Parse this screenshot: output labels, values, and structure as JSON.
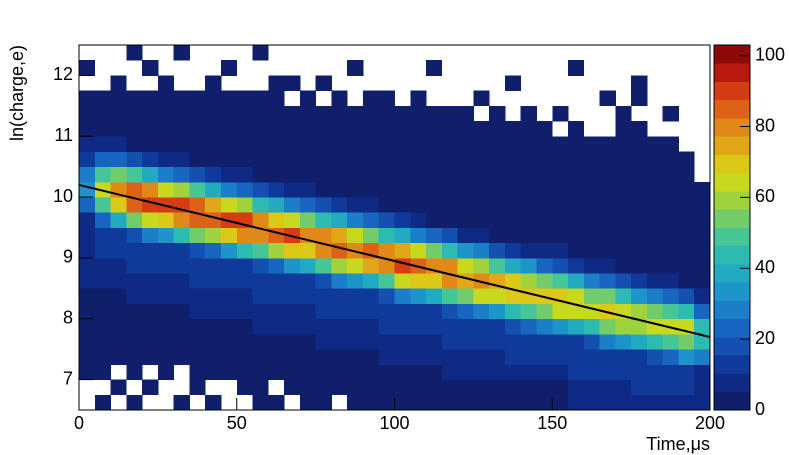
{
  "chart_data": {
    "type": "heatmap",
    "xlabel": "Time,μs",
    "ylabel": "ln(charge,e)",
    "xlim": [
      0,
      200
    ],
    "xticks": [
      0,
      50,
      100,
      150,
      200
    ],
    "ylim": [
      6.5,
      12.5
    ],
    "yticks": [
      7,
      8,
      9,
      10,
      11,
      12
    ],
    "zlim": [
      0,
      103
    ],
    "zticks": [
      0,
      20,
      40,
      60,
      80,
      100
    ],
    "palette": [
      "#101f6b",
      "#0e2a85",
      "#10399c",
      "#1450b0",
      "#1866c0",
      "#1b7ec8",
      "#1d95c9",
      "#22aac0",
      "#2bbbb0",
      "#46c596",
      "#72cc6a",
      "#a0d23e",
      "#c8d81e",
      "#dcc816",
      "#e0a818",
      "#e08818",
      "#dc6218",
      "#d43c14",
      "#b81a10",
      "#8c0a08"
    ],
    "x_bins": [
      0,
      5,
      10,
      15,
      20,
      25,
      30,
      35,
      40,
      45,
      50,
      55,
      60,
      65,
      70,
      75,
      80,
      85,
      90,
      95,
      100,
      105,
      110,
      115,
      120,
      125,
      130,
      135,
      140,
      145,
      150,
      155,
      160,
      165,
      170,
      175,
      180,
      185,
      190,
      195,
      200
    ],
    "y_bins": [
      6.5,
      6.75,
      7,
      7.25,
      7.5,
      7.75,
      8,
      8.25,
      8.5,
      8.75,
      9,
      9.25,
      9.5,
      9.75,
      10,
      10.25,
      10.5,
      10.75,
      11,
      11.25,
      11.5,
      11.75,
      12,
      12.25,
      12.5
    ],
    "values": [
      [
        0,
        0,
        1,
        2,
        3,
        3,
        4,
        4,
        6,
        6,
        8,
        8,
        10,
        24,
        35,
        30,
        15,
        6,
        4,
        1,
        1,
        0,
        1,
        0
      ],
      [
        1,
        0,
        1,
        2,
        3,
        3,
        5,
        5,
        8,
        8,
        12,
        12,
        25,
        51,
        65,
        49,
        22,
        6,
        4,
        2,
        1,
        0,
        0,
        0
      ],
      [
        0,
        1,
        0,
        1,
        3,
        3,
        5,
        5,
        8,
        8,
        12,
        13,
        39,
        72,
        80,
        53,
        21,
        6,
        4,
        2,
        1,
        1,
        0,
        0
      ],
      [
        1,
        0,
        1,
        2,
        3,
        5,
        5,
        8,
        8,
        12,
        12,
        20,
        52,
        86,
        84,
        49,
        17,
        4,
        4,
        1,
        1,
        0,
        0,
        1
      ],
      [
        0,
        1,
        0,
        2,
        3,
        5,
        5,
        8,
        8,
        12,
        12,
        27,
        63,
        91,
        78,
        40,
        12,
        4,
        4,
        2,
        1,
        0,
        1,
        0
      ],
      [
        0,
        0,
        1,
        2,
        3,
        5,
        5,
        8,
        8,
        12,
        12,
        33,
        70,
        88,
        66,
        30,
        8,
        4,
        4,
        2,
        1,
        1,
        0,
        0
      ],
      [
        1,
        0,
        0,
        2,
        3,
        5,
        5,
        8,
        8,
        12,
        14,
        44,
        81,
        90,
        60,
        24,
        6,
        4,
        3,
        2,
        1,
        0,
        0,
        1
      ],
      [
        0,
        1,
        1,
        3,
        5,
        5,
        8,
        8,
        12,
        12,
        20,
        52,
        86,
        84,
        49,
        17,
        4,
        4,
        3,
        1,
        1,
        0,
        0,
        0
      ],
      [
        1,
        0,
        1,
        3,
        5,
        5,
        8,
        8,
        12,
        12,
        25,
        59,
        85,
        73,
        38,
        12,
        4,
        4,
        3,
        2,
        1,
        1,
        0,
        0
      ],
      [
        0,
        0,
        2,
        3,
        5,
        5,
        8,
        8,
        12,
        12,
        33,
        70,
        88,
        66,
        30,
        8,
        4,
        4,
        3,
        1,
        1,
        0,
        1,
        0
      ],
      [
        0,
        1,
        1,
        3,
        5,
        5,
        8,
        8,
        12,
        14,
        44,
        81,
        90,
        60,
        24,
        6,
        4,
        3,
        3,
        2,
        1,
        0,
        0,
        0
      ],
      [
        1,
        1,
        2,
        4,
        5,
        8,
        8,
        12,
        12,
        19,
        49,
        81,
        79,
        46,
        16,
        4,
        4,
        3,
        3,
        1,
        1,
        0,
        0,
        1
      ],
      [
        1,
        0,
        2,
        4,
        5,
        8,
        8,
        12,
        12,
        24,
        58,
        83,
        71,
        37,
        11,
        4,
        4,
        3,
        2,
        1,
        1,
        1,
        0,
        0
      ],
      [
        0,
        1,
        1,
        4,
        5,
        8,
        8,
        12,
        12,
        33,
        70,
        88,
        66,
        30,
        8,
        4,
        4,
        3,
        2,
        2,
        0,
        1,
        0,
        0
      ],
      [
        1,
        1,
        2,
        4,
        5,
        8,
        8,
        12,
        13,
        39,
        72,
        80,
        53,
        21,
        6,
        4,
        4,
        3,
        2,
        1,
        1,
        0,
        0,
        0
      ],
      [
        1,
        1,
        3,
        5,
        8,
        8,
        12,
        12,
        18,
        49,
        80,
        78,
        45,
        16,
        4,
        4,
        3,
        3,
        2,
        1,
        0,
        1,
        0,
        0
      ],
      [
        0,
        1,
        3,
        5,
        8,
        8,
        12,
        12,
        26,
        61,
        87,
        75,
        39,
        12,
        4,
        4,
        3,
        3,
        2,
        1,
        1,
        0,
        0,
        0
      ],
      [
        1,
        2,
        2,
        5,
        8,
        8,
        12,
        12,
        31,
        65,
        82,
        62,
        28,
        7,
        4,
        4,
        3,
        3,
        2,
        1,
        0,
        0,
        1,
        0
      ],
      [
        1,
        1,
        3,
        5,
        8,
        8,
        12,
        13,
        41,
        76,
        84,
        56,
        22,
        6,
        4,
        4,
        3,
        3,
        2,
        1,
        1,
        0,
        0,
        0
      ],
      [
        1,
        2,
        5,
        8,
        8,
        12,
        12,
        18,
        49,
        80,
        78,
        45,
        16,
        4,
        4,
        3,
        3,
        2,
        2,
        1,
        1,
        0,
        0,
        0
      ],
      [
        2,
        2,
        5,
        8,
        8,
        12,
        12,
        26,
        62,
        89,
        77,
        40,
        12,
        4,
        4,
        3,
        3,
        2,
        2,
        1,
        0,
        0,
        0,
        0
      ],
      [
        1,
        3,
        5,
        8,
        8,
        12,
        12,
        33,
        68,
        86,
        65,
        29,
        8,
        4,
        4,
        3,
        3,
        2,
        1,
        1,
        1,
        0,
        0,
        0
      ],
      [
        2,
        3,
        5,
        8,
        8,
        12,
        13,
        39,
        72,
        80,
        53,
        21,
        5,
        4,
        4,
        3,
        3,
        2,
        1,
        1,
        0,
        0,
        1,
        0
      ],
      [
        3,
        4,
        6,
        8,
        12,
        12,
        18,
        49,
        80,
        78,
        45,
        16,
        4,
        4,
        3,
        3,
        2,
        2,
        1,
        1,
        0,
        0,
        0,
        0
      ],
      [
        3,
        4,
        6,
        8,
        12,
        12,
        22,
        52,
        75,
        65,
        33,
        10,
        4,
        4,
        3,
        3,
        2,
        2,
        1,
        1,
        0,
        0,
        0,
        0
      ],
      [
        3,
        4,
        6,
        8,
        12,
        12,
        30,
        62,
        78,
        59,
        27,
        7,
        4,
        4,
        3,
        3,
        2,
        1,
        1,
        0,
        1,
        0,
        0,
        0
      ],
      [
        3,
        4,
        6,
        8,
        12,
        12,
        36,
        65,
        73,
        48,
        19,
        4,
        4,
        4,
        3,
        3,
        2,
        2,
        1,
        1,
        0,
        0,
        0,
        0
      ],
      [
        4,
        5,
        8,
        12,
        12,
        16,
        42,
        68,
        67,
        39,
        14,
        4,
        4,
        3,
        3,
        2,
        2,
        1,
        1,
        0,
        0,
        1,
        0,
        0
      ],
      [
        4,
        5,
        8,
        12,
        12,
        21,
        50,
        71,
        61,
        32,
        10,
        4,
        4,
        3,
        3,
        2,
        2,
        1,
        1,
        1,
        0,
        0,
        0,
        0
      ],
      [
        4,
        5,
        8,
        12,
        12,
        27,
        55,
        70,
        53,
        24,
        6,
        4,
        4,
        3,
        3,
        2,
        1,
        1,
        1,
        0,
        0,
        0,
        0,
        0
      ],
      [
        4,
        5,
        8,
        12,
        12,
        35,
        63,
        71,
        47,
        19,
        6,
        4,
        4,
        3,
        3,
        2,
        2,
        1,
        0,
        1,
        0,
        0,
        0,
        0
      ],
      [
        6,
        8,
        12,
        12,
        15,
        39,
        65,
        63,
        37,
        13,
        4,
        4,
        3,
        3,
        2,
        2,
        1,
        1,
        1,
        0,
        0,
        0,
        1,
        0
      ],
      [
        6,
        8,
        12,
        12,
        19,
        46,
        65,
        56,
        29,
        9,
        4,
        4,
        3,
        3,
        2,
        2,
        1,
        1,
        0,
        0,
        0,
        0,
        0,
        0
      ],
      [
        6,
        8,
        12,
        12,
        27,
        55,
        70,
        53,
        24,
        6,
        4,
        4,
        3,
        3,
        2,
        1,
        1,
        1,
        0,
        0,
        1,
        0,
        0,
        0
      ],
      [
        6,
        8,
        12,
        12,
        32,
        58,
        65,
        43,
        17,
        4,
        4,
        4,
        3,
        3,
        2,
        2,
        1,
        1,
        1,
        1,
        0,
        0,
        0,
        0
      ],
      [
        8,
        12,
        12,
        14,
        37,
        61,
        60,
        35,
        12,
        4,
        4,
        3,
        3,
        2,
        2,
        1,
        1,
        1,
        1,
        0,
        1,
        1,
        0,
        0
      ],
      [
        8,
        12,
        12,
        19,
        46,
        65,
        56,
        29,
        9,
        4,
        4,
        3,
        3,
        2,
        2,
        1,
        1,
        1,
        0,
        0,
        0,
        0,
        0,
        0
      ],
      [
        8,
        12,
        12,
        24,
        49,
        62,
        47,
        21,
        6,
        4,
        4,
        3,
        3,
        2,
        1,
        1,
        1,
        1,
        0,
        1,
        0,
        0,
        0,
        0
      ],
      [
        8,
        12,
        12,
        31,
        56,
        63,
        42,
        17,
        4,
        4,
        4,
        3,
        3,
        2,
        2,
        1,
        1,
        0,
        0,
        0,
        0,
        0,
        0,
        0
      ],
      [
        6,
        8,
        10,
        26,
        43,
        42,
        24,
        9,
        3,
        3,
        2,
        2,
        1,
        1,
        1,
        0,
        0,
        0,
        0,
        0,
        0,
        0,
        0,
        0
      ]
    ],
    "fit": {
      "x": [
        0,
        200
      ],
      "y": [
        10.2,
        7.7
      ],
      "color": "#000000"
    }
  }
}
